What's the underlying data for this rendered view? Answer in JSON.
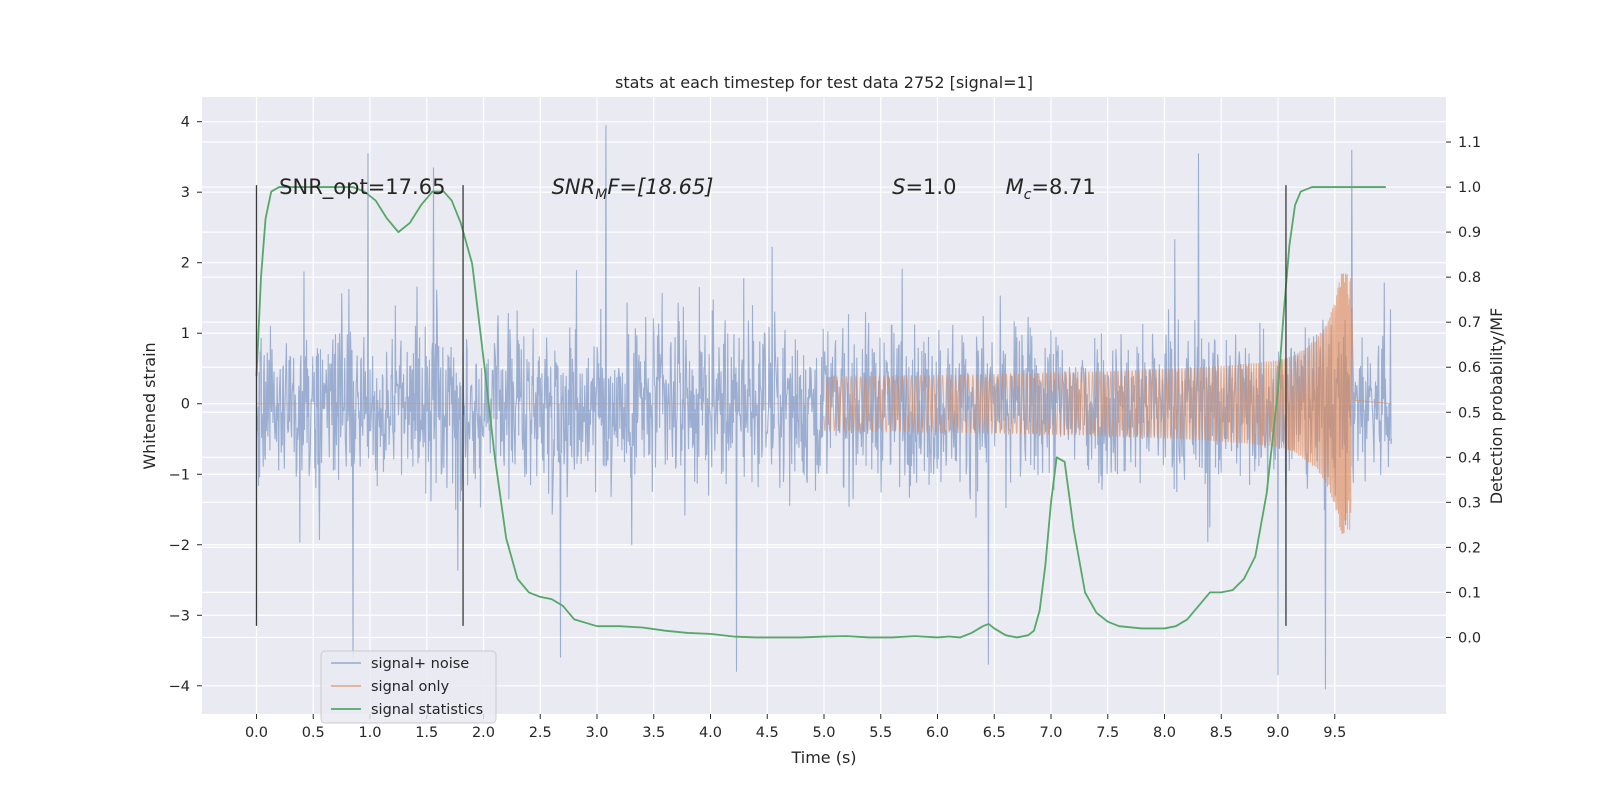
{
  "chart_data": {
    "type": "line",
    "title": "stats at each timestep for test data 2752 [signal=1]",
    "xlabel": "Time (s)",
    "ylabel": "Whitened strain",
    "y2label": "Detection probability/MF",
    "xlim": [
      -0.48,
      10.48
    ],
    "ylim": [
      -4.4,
      4.35
    ],
    "y2lim": [
      -0.17,
      1.2
    ],
    "xticks": [
      0.0,
      0.5,
      1.0,
      1.5,
      2.0,
      2.5,
      3.0,
      3.5,
      4.0,
      4.5,
      5.0,
      5.5,
      6.0,
      6.5,
      7.0,
      7.5,
      8.0,
      8.5,
      9.0,
      9.5
    ],
    "xtick_labels": [
      "0.0",
      "0.5",
      "1.0",
      "1.5",
      "2.0",
      "2.5",
      "3.0",
      "3.5",
      "4.0",
      "4.5",
      "5.0",
      "5.5",
      "6.0",
      "6.5",
      "7.0",
      "7.5",
      "8.0",
      "8.5",
      "9.0",
      "9.5"
    ],
    "yticks": [
      -4,
      -3,
      -2,
      -1,
      0,
      1,
      2,
      3,
      4
    ],
    "ytick_labels": [
      "−4",
      "−3",
      "−2",
      "−1",
      "0",
      "1",
      "2",
      "3",
      "4"
    ],
    "y2ticks": [
      0.0,
      0.1,
      0.2,
      0.3,
      0.4,
      0.5,
      0.6,
      0.7,
      0.8,
      0.9,
      1.0,
      1.1
    ],
    "y2tick_labels": [
      "0.0",
      "0.1",
      "0.2",
      "0.3",
      "0.4",
      "0.5",
      "0.6",
      "0.7",
      "0.8",
      "0.9",
      "1.0",
      "1.1"
    ],
    "grid": true,
    "legend_position": "lower-left",
    "annotations": [
      {
        "id": "snr-opt",
        "text": "SNR_opt=17.65",
        "x": 0.2,
        "y": 3.1
      },
      {
        "id": "snr-mf",
        "prefix": "SNR",
        "sub": "M",
        "suffix": "F=[18.65]",
        "x": 2.6,
        "y": 3.1
      },
      {
        "id": "s-value",
        "prefix": "S",
        "suffix": "=1.0",
        "x": 5.6,
        "y": 3.1
      },
      {
        "id": "mc-value",
        "prefix": "M",
        "sub": "c",
        "suffix": "=8.71",
        "x": 6.6,
        "y": 3.1
      }
    ],
    "vertical_markers": [
      0.0,
      1.82,
      9.07
    ],
    "marker_range": [
      -3.15,
      3.1
    ],
    "series": [
      {
        "name": "signal+ noise",
        "color": "#4c72b0",
        "axis": "left",
        "x_range": [
          0.0,
          10.0
        ],
        "typical_range": [
          -1.8,
          2.0
        ],
        "extremes": [
          {
            "x": 0.98,
            "y": 3.55
          },
          {
            "x": 1.56,
            "y": 3.35
          },
          {
            "x": 3.08,
            "y": 3.95
          },
          {
            "x": 9.65,
            "y": 3.6
          },
          {
            "x": 8.3,
            "y": 3.55
          },
          {
            "x": 0.85,
            "y": -3.6
          },
          {
            "x": 2.68,
            "y": -3.6
          },
          {
            "x": 4.23,
            "y": -3.8
          },
          {
            "x": 9.42,
            "y": -4.05
          },
          {
            "x": 9.0,
            "y": -3.85
          },
          {
            "x": 6.45,
            "y": -3.7
          }
        ]
      },
      {
        "name": "signal only",
        "color": "#dd8452",
        "axis": "left",
        "type": "chirp",
        "start": 5.0,
        "merger": 9.65,
        "peak_amplitude": 1.85
      },
      {
        "name": "signal statistics",
        "color": "#55a868",
        "axis": "right",
        "x": [
          0.0,
          0.04,
          0.08,
          0.13,
          0.2,
          0.3,
          0.5,
          0.7,
          0.85,
          0.95,
          1.05,
          1.15,
          1.25,
          1.35,
          1.45,
          1.55,
          1.65,
          1.72,
          1.8,
          1.9,
          2.0,
          2.1,
          2.2,
          2.3,
          2.4,
          2.5,
          2.6,
          2.7,
          2.8,
          3.0,
          3.2,
          3.4,
          3.6,
          3.8,
          4.0,
          4.2,
          4.4,
          4.6,
          4.8,
          5.0,
          5.2,
          5.4,
          5.6,
          5.8,
          6.0,
          6.1,
          6.2,
          6.3,
          6.4,
          6.45,
          6.5,
          6.6,
          6.7,
          6.8,
          6.85,
          6.9,
          6.95,
          7.0,
          7.05,
          7.12,
          7.2,
          7.3,
          7.4,
          7.5,
          7.6,
          7.8,
          8.0,
          8.1,
          8.2,
          8.3,
          8.4,
          8.5,
          8.6,
          8.7,
          8.8,
          8.9,
          9.0,
          9.05,
          9.1,
          9.15,
          9.2,
          9.25,
          9.3,
          9.4,
          9.6,
          9.8,
          9.95
        ],
        "values": [
          0.58,
          0.8,
          0.93,
          0.99,
          1.0,
          1.0,
          1.0,
          1.0,
          1.0,
          0.99,
          0.97,
          0.93,
          0.9,
          0.92,
          0.96,
          0.99,
          0.99,
          0.97,
          0.92,
          0.83,
          0.62,
          0.4,
          0.22,
          0.13,
          0.1,
          0.09,
          0.085,
          0.07,
          0.04,
          0.025,
          0.025,
          0.022,
          0.015,
          0.01,
          0.008,
          0.002,
          0.0,
          0.0,
          0.0,
          0.002,
          0.003,
          0.0,
          0.0,
          0.003,
          0.0,
          0.002,
          0.0,
          0.01,
          0.025,
          0.03,
          0.02,
          0.005,
          0.0,
          0.005,
          0.015,
          0.06,
          0.16,
          0.3,
          0.4,
          0.39,
          0.24,
          0.1,
          0.055,
          0.035,
          0.025,
          0.02,
          0.02,
          0.025,
          0.04,
          0.07,
          0.1,
          0.1,
          0.105,
          0.13,
          0.18,
          0.32,
          0.55,
          0.72,
          0.87,
          0.96,
          0.99,
          0.995,
          1.0,
          1.0,
          1.0,
          1.0,
          1.0
        ]
      }
    ]
  }
}
